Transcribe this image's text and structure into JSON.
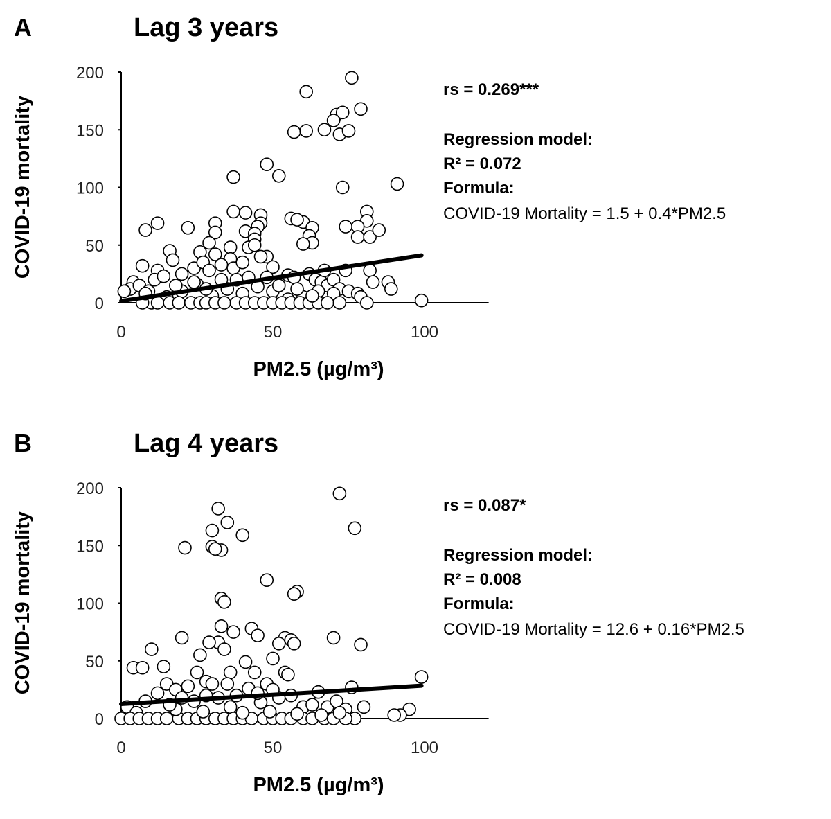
{
  "chart_data": [
    {
      "type": "scatter",
      "panel": "A",
      "title": "Lag 3 years",
      "xlabel": "PM2.5 (µg/m³)",
      "ylabel": "COVID-19 mortality",
      "xlim": [
        0,
        120
      ],
      "ylim": [
        0,
        200
      ],
      "xticks": [
        0,
        50,
        100
      ],
      "yticks": [
        0,
        50,
        100,
        150,
        200
      ],
      "grid": false,
      "annotations": {
        "rs": "rs = 0.269***",
        "model": "Regression model:",
        "r2": "R² =  0.072",
        "formula_label": "Formula:",
        "formula": "COVID-19 Mortality = 1.5 + 0.4*PM2.5"
      },
      "regression": {
        "intercept": 1.5,
        "slope": 0.4,
        "x_range": [
          0,
          99
        ]
      },
      "points": [
        [
          76,
          195
        ],
        [
          61,
          183
        ],
        [
          79,
          168
        ],
        [
          71,
          163
        ],
        [
          73,
          165
        ],
        [
          70,
          158
        ],
        [
          67,
          150
        ],
        [
          57,
          148
        ],
        [
          61,
          149
        ],
        [
          72,
          146
        ],
        [
          75,
          149
        ],
        [
          48,
          120
        ],
        [
          52,
          110
        ],
        [
          37,
          109
        ],
        [
          73,
          100
        ],
        [
          91,
          103
        ],
        [
          37,
          79
        ],
        [
          60,
          70
        ],
        [
          56,
          73
        ],
        [
          81,
          79
        ],
        [
          81,
          71
        ],
        [
          78,
          66
        ],
        [
          74,
          66
        ],
        [
          78,
          57
        ],
        [
          82,
          57
        ],
        [
          85,
          63
        ],
        [
          63,
          65
        ],
        [
          62,
          58
        ],
        [
          58,
          72
        ],
        [
          63,
          52
        ],
        [
          60,
          51
        ],
        [
          46,
          76
        ],
        [
          46,
          69
        ],
        [
          45,
          66
        ],
        [
          41,
          62
        ],
        [
          31,
          69
        ],
        [
          31,
          61
        ],
        [
          12,
          69
        ],
        [
          8,
          63
        ],
        [
          22,
          65
        ],
        [
          41,
          78
        ],
        [
          44,
          60
        ],
        [
          44,
          55
        ],
        [
          42,
          48
        ],
        [
          48,
          40
        ],
        [
          44,
          50
        ],
        [
          29,
          52
        ],
        [
          31,
          42
        ],
        [
          36,
          48
        ],
        [
          36,
          38
        ],
        [
          26,
          44
        ],
        [
          16,
          45
        ],
        [
          17,
          37
        ],
        [
          12,
          28
        ],
        [
          7,
          32
        ],
        [
          11,
          20
        ],
        [
          4,
          18
        ],
        [
          3,
          12
        ],
        [
          1,
          10
        ],
        [
          6,
          15
        ],
        [
          9,
          10
        ],
        [
          14,
          23
        ],
        [
          20,
          25
        ],
        [
          24,
          30
        ],
        [
          27,
          35
        ],
        [
          29,
          28
        ],
        [
          33,
          33
        ],
        [
          37,
          30
        ],
        [
          40,
          35
        ],
        [
          46,
          40
        ],
        [
          50,
          31
        ],
        [
          55,
          24
        ],
        [
          57,
          22
        ],
        [
          62,
          25
        ],
        [
          64,
          20
        ],
        [
          66,
          18
        ],
        [
          68,
          15
        ],
        [
          70,
          20
        ],
        [
          72,
          12
        ],
        [
          75,
          10
        ],
        [
          78,
          8
        ],
        [
          82,
          28
        ],
        [
          88,
          18
        ],
        [
          89,
          12
        ],
        [
          74,
          28
        ],
        [
          83,
          18
        ],
        [
          79,
          5
        ],
        [
          81,
          0
        ],
        [
          99,
          2
        ],
        [
          70,
          8
        ],
        [
          65,
          10
        ],
        [
          60,
          5
        ],
        [
          55,
          3
        ],
        [
          50,
          10
        ],
        [
          45,
          14
        ],
        [
          40,
          8
        ],
        [
          35,
          12
        ],
        [
          30,
          6
        ],
        [
          25,
          16
        ],
        [
          20,
          10
        ],
        [
          15,
          5
        ],
        [
          10,
          0
        ],
        [
          12,
          0
        ],
        [
          16,
          0
        ],
        [
          19,
          0
        ],
        [
          23,
          0
        ],
        [
          26,
          0
        ],
        [
          28,
          0
        ],
        [
          31,
          0
        ],
        [
          34,
          0
        ],
        [
          38,
          0
        ],
        [
          41,
          0
        ],
        [
          44,
          0
        ],
        [
          47,
          0
        ],
        [
          50,
          0
        ],
        [
          53,
          0
        ],
        [
          56,
          0
        ],
        [
          59,
          0
        ],
        [
          62,
          0
        ],
        [
          65,
          0
        ],
        [
          68,
          0
        ],
        [
          72,
          0
        ],
        [
          7,
          0
        ],
        [
          24,
          18
        ],
        [
          33,
          20
        ],
        [
          42,
          22
        ],
        [
          52,
          15
        ],
        [
          58,
          12
        ],
        [
          63,
          6
        ],
        [
          67,
          28
        ],
        [
          48,
          22
        ],
        [
          38,
          20
        ],
        [
          28,
          12
        ],
        [
          18,
          15
        ],
        [
          8,
          8
        ]
      ]
    },
    {
      "type": "scatter",
      "panel": "B",
      "title": "Lag 4 years",
      "xlabel": "PM2.5 (µg/m³)",
      "ylabel": "COVID-19 mortality",
      "xlim": [
        0,
        120
      ],
      "ylim": [
        0,
        200
      ],
      "xticks": [
        0,
        50,
        100
      ],
      "yticks": [
        0,
        50,
        100,
        150,
        200
      ],
      "grid": false,
      "annotations": {
        "rs": "rs = 0.087*",
        "model": "Regression model:",
        "r2": "R² = 0.008",
        "formula_label": "Formula:",
        "formula": "COVID-19 Mortality = 12.6 + 0.16*PM2.5"
      },
      "regression": {
        "intercept": 12.6,
        "slope": 0.16,
        "x_range": [
          0,
          99
        ]
      },
      "points": [
        [
          72,
          195
        ],
        [
          32,
          182
        ],
        [
          35,
          170
        ],
        [
          30,
          163
        ],
        [
          40,
          159
        ],
        [
          77,
          165
        ],
        [
          21,
          148
        ],
        [
          30,
          149
        ],
        [
          33,
          146
        ],
        [
          31,
          147
        ],
        [
          48,
          120
        ],
        [
          33,
          104
        ],
        [
          34,
          101
        ],
        [
          58,
          110
        ],
        [
          57,
          108
        ],
        [
          70,
          70
        ],
        [
          79,
          64
        ],
        [
          20,
          70
        ],
        [
          33,
          80
        ],
        [
          37,
          75
        ],
        [
          43,
          78
        ],
        [
          45,
          72
        ],
        [
          54,
          70
        ],
        [
          56,
          68
        ],
        [
          57,
          65
        ],
        [
          52,
          65
        ],
        [
          50,
          52
        ],
        [
          41,
          49
        ],
        [
          32,
          66
        ],
        [
          29,
          66
        ],
        [
          34,
          60
        ],
        [
          26,
          55
        ],
        [
          10,
          60
        ],
        [
          4,
          44
        ],
        [
          7,
          44
        ],
        [
          14,
          45
        ],
        [
          25,
          40
        ],
        [
          36,
          40
        ],
        [
          44,
          40
        ],
        [
          48,
          30
        ],
        [
          54,
          40
        ],
        [
          55,
          38
        ],
        [
          65,
          23
        ],
        [
          76,
          27
        ],
        [
          80,
          10
        ],
        [
          99,
          36
        ],
        [
          95,
          8
        ],
        [
          92,
          3
        ],
        [
          12,
          22
        ],
        [
          15,
          30
        ],
        [
          18,
          25
        ],
        [
          22,
          28
        ],
        [
          28,
          32
        ],
        [
          30,
          30
        ],
        [
          38,
          20
        ],
        [
          42,
          26
        ],
        [
          46,
          14
        ],
        [
          52,
          18
        ],
        [
          56,
          20
        ],
        [
          60,
          10
        ],
        [
          63,
          12
        ],
        [
          68,
          10
        ],
        [
          71,
          15
        ],
        [
          74,
          8
        ],
        [
          77,
          0
        ],
        [
          2,
          10
        ],
        [
          5,
          5
        ],
        [
          8,
          15
        ],
        [
          24,
          15
        ],
        [
          32,
          18
        ],
        [
          36,
          10
        ],
        [
          0,
          0
        ],
        [
          3,
          0
        ],
        [
          6,
          0
        ],
        [
          9,
          0
        ],
        [
          12,
          0
        ],
        [
          15,
          0
        ],
        [
          19,
          0
        ],
        [
          22,
          0
        ],
        [
          25,
          0
        ],
        [
          28,
          0
        ],
        [
          31,
          0
        ],
        [
          34,
          0
        ],
        [
          37,
          0
        ],
        [
          40,
          0
        ],
        [
          43,
          0
        ],
        [
          47,
          0
        ],
        [
          50,
          0
        ],
        [
          53,
          0
        ],
        [
          56,
          0
        ],
        [
          60,
          0
        ],
        [
          63,
          0
        ],
        [
          67,
          0
        ],
        [
          70,
          0
        ],
        [
          74,
          0
        ],
        [
          90,
          3
        ],
        [
          18,
          8
        ],
        [
          27,
          6
        ],
        [
          40,
          5
        ],
        [
          49,
          6
        ],
        [
          58,
          4
        ],
        [
          66,
          3
        ],
        [
          72,
          5
        ],
        [
          28,
          20
        ],
        [
          45,
          22
        ],
        [
          20,
          18
        ],
        [
          16,
          12
        ],
        [
          50,
          25
        ],
        [
          35,
          30
        ]
      ]
    }
  ]
}
